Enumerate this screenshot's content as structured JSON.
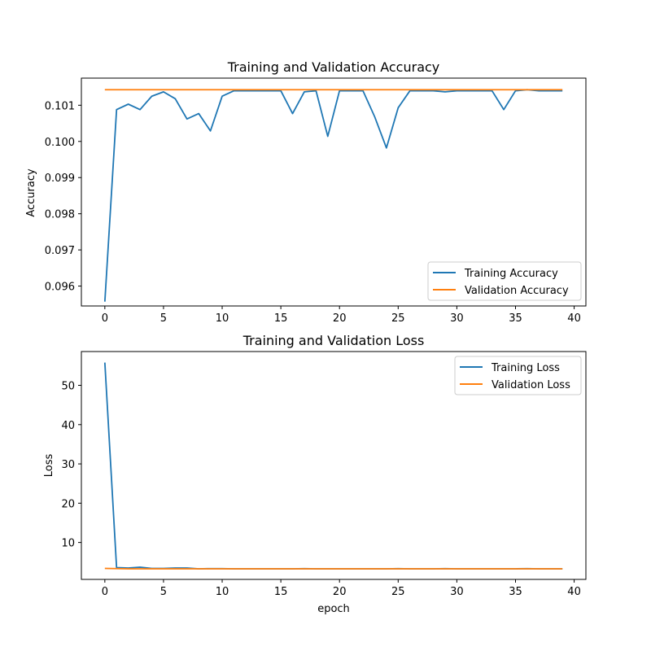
{
  "chart_data": [
    {
      "type": "line",
      "title": "Training and Validation Accuracy",
      "xlabel": "",
      "ylabel": "Accuracy",
      "xlim": [
        -2,
        41
      ],
      "ylim": [
        0.09545,
        0.10175
      ],
      "xticks": [
        0,
        5,
        10,
        15,
        20,
        25,
        30,
        35,
        40
      ],
      "yticks": [
        0.096,
        0.097,
        0.098,
        0.099,
        0.1,
        0.101
      ],
      "ytick_labels": [
        "0.096",
        "0.097",
        "0.098",
        "0.099",
        "0.100",
        "0.101"
      ],
      "legend_position": "lower-right",
      "series": [
        {
          "name": "Training Accuracy",
          "color": "#1f77b4",
          "x": [
            0,
            1,
            2,
            3,
            4,
            5,
            6,
            7,
            8,
            9,
            10,
            11,
            12,
            13,
            14,
            15,
            16,
            17,
            18,
            19,
            20,
            21,
            22,
            23,
            24,
            25,
            26,
            27,
            28,
            29,
            30,
            31,
            32,
            33,
            34,
            35,
            36,
            37,
            38,
            39
          ],
          "values": [
            0.09557,
            0.10088,
            0.10103,
            0.10088,
            0.10125,
            0.10137,
            0.10118,
            0.10062,
            0.10077,
            0.10029,
            0.10125,
            0.1014,
            0.1014,
            0.1014,
            0.1014,
            0.1014,
            0.10077,
            0.10137,
            0.1014,
            0.10014,
            0.1014,
            0.1014,
            0.1014,
            0.10068,
            0.09982,
            0.10093,
            0.1014,
            0.1014,
            0.1014,
            0.10137,
            0.1014,
            0.1014,
            0.1014,
            0.1014,
            0.10088,
            0.1014,
            0.10143,
            0.1014,
            0.1014,
            0.1014
          ]
        },
        {
          "name": "Validation Accuracy",
          "color": "#ff7f0e",
          "x": [
            0,
            1,
            2,
            3,
            4,
            5,
            6,
            7,
            8,
            9,
            10,
            11,
            12,
            13,
            14,
            15,
            16,
            17,
            18,
            19,
            20,
            21,
            22,
            23,
            24,
            25,
            26,
            27,
            28,
            29,
            30,
            31,
            32,
            33,
            34,
            35,
            36,
            37,
            38,
            39
          ],
          "values": [
            0.10143,
            0.10143,
            0.10143,
            0.10143,
            0.10143,
            0.10143,
            0.10143,
            0.10143,
            0.10143,
            0.10143,
            0.10143,
            0.10143,
            0.10143,
            0.10143,
            0.10143,
            0.10143,
            0.10143,
            0.10143,
            0.10143,
            0.10143,
            0.10143,
            0.10143,
            0.10143,
            0.10143,
            0.10143,
            0.10143,
            0.10143,
            0.10143,
            0.10143,
            0.10143,
            0.10143,
            0.10143,
            0.10143,
            0.10143,
            0.10143,
            0.10143,
            0.10143,
            0.10143,
            0.10143,
            0.10143
          ]
        }
      ]
    },
    {
      "type": "line",
      "title": "Training and Validation Loss",
      "xlabel": "epoch",
      "ylabel": "Loss",
      "xlim": [
        -2,
        41
      ],
      "ylim": [
        0.6,
        58.6
      ],
      "xticks": [
        0,
        5,
        10,
        15,
        20,
        25,
        30,
        35,
        40
      ],
      "yticks": [
        10,
        20,
        30,
        40,
        50
      ],
      "ytick_labels": [
        "10",
        "20",
        "30",
        "40",
        "50"
      ],
      "legend_position": "upper-right",
      "series": [
        {
          "name": "Training Loss",
          "color": "#1f77b4",
          "x": [
            0,
            1,
            2,
            3,
            4,
            5,
            6,
            7,
            8,
            9,
            10,
            11,
            12,
            13,
            14,
            15,
            16,
            17,
            18,
            19,
            20,
            21,
            22,
            23,
            24,
            25,
            26,
            27,
            28,
            29,
            30,
            31,
            32,
            33,
            34,
            35,
            36,
            37,
            38,
            39
          ],
          "values": [
            55.8,
            3.6,
            3.5,
            3.7,
            3.4,
            3.4,
            3.5,
            3.5,
            3.3,
            3.35,
            3.35,
            3.3,
            3.3,
            3.3,
            3.3,
            3.3,
            3.3,
            3.35,
            3.3,
            3.3,
            3.3,
            3.3,
            3.3,
            3.3,
            3.3,
            3.35,
            3.3,
            3.3,
            3.3,
            3.35,
            3.3,
            3.3,
            3.3,
            3.3,
            3.3,
            3.3,
            3.35,
            3.3,
            3.3,
            3.3
          ]
        },
        {
          "name": "Validation Loss",
          "color": "#ff7f0e",
          "x": [
            0,
            1,
            2,
            3,
            4,
            5,
            6,
            7,
            8,
            9,
            10,
            11,
            12,
            13,
            14,
            15,
            16,
            17,
            18,
            19,
            20,
            21,
            22,
            23,
            24,
            25,
            26,
            27,
            28,
            29,
            30,
            31,
            32,
            33,
            34,
            35,
            36,
            37,
            38,
            39
          ],
          "values": [
            3.4,
            3.35,
            3.3,
            3.3,
            3.3,
            3.3,
            3.3,
            3.3,
            3.3,
            3.3,
            3.3,
            3.3,
            3.3,
            3.3,
            3.3,
            3.3,
            3.3,
            3.3,
            3.3,
            3.3,
            3.3,
            3.3,
            3.3,
            3.3,
            3.3,
            3.3,
            3.3,
            3.3,
            3.3,
            3.3,
            3.3,
            3.3,
            3.3,
            3.3,
            3.3,
            3.3,
            3.3,
            3.3,
            3.3,
            3.3
          ]
        }
      ]
    }
  ]
}
